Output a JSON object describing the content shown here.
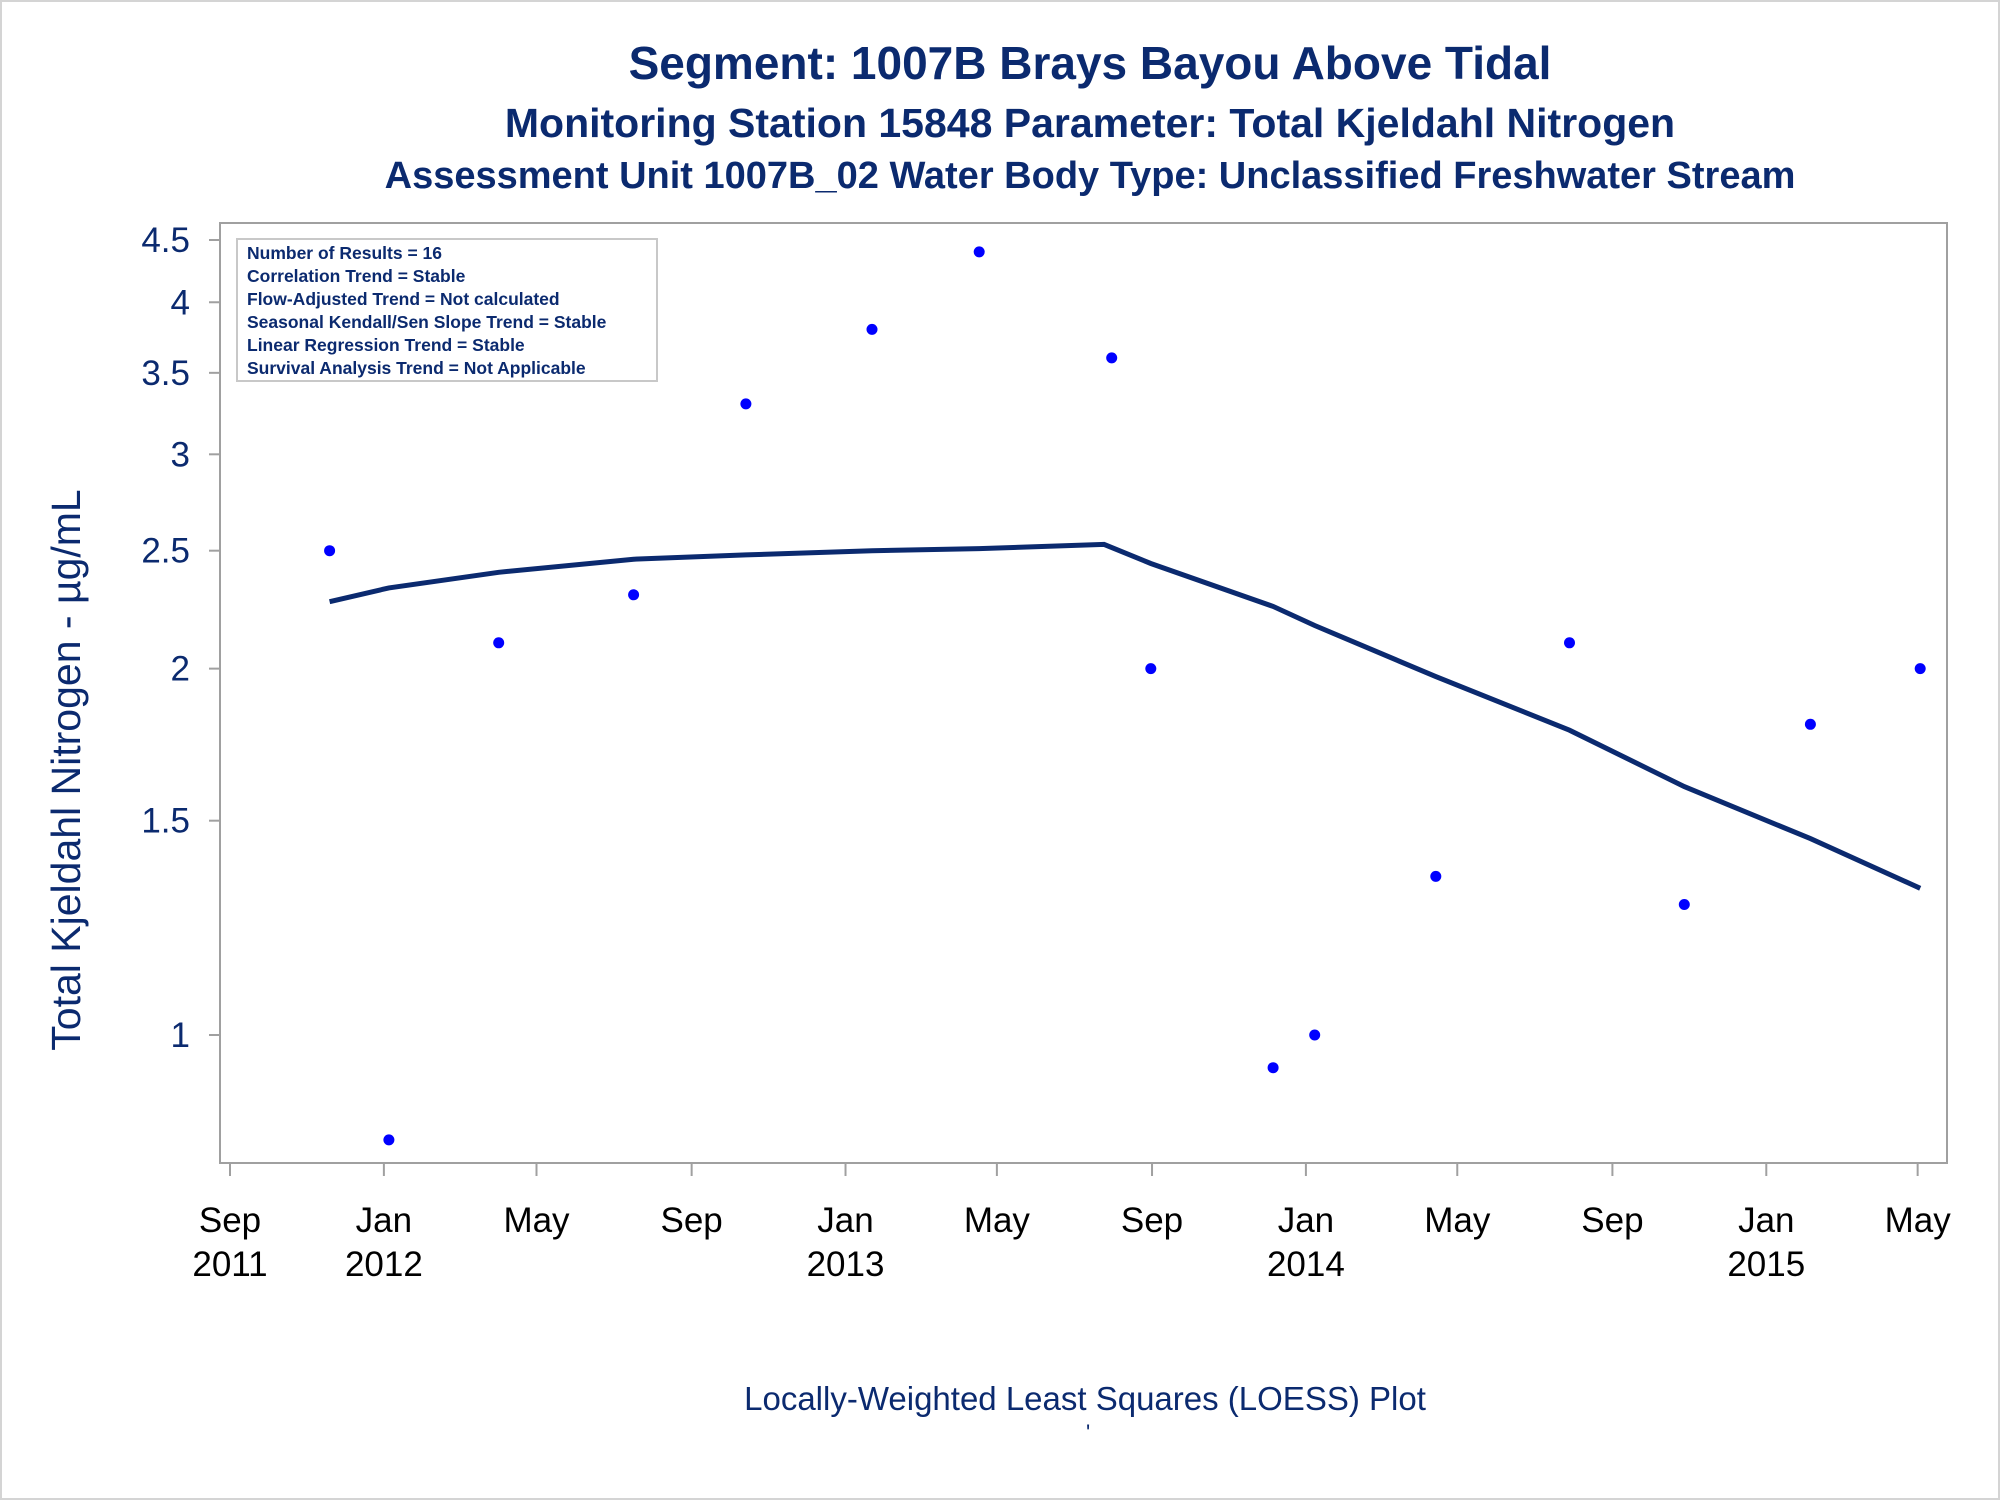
{
  "titles": {
    "line1": "Segment: 1007B  Brays Bayou Above Tidal",
    "line2": "Monitoring Station 15848 Parameter: Total Kjeldahl Nitrogen",
    "line3": "Assessment Unit 1007B_02   Water Body Type: Unclassified Freshwater Stream"
  },
  "legend": [
    "Number of Results = 16",
    "Correlation Trend = Stable",
    "Flow-Adjusted Trend = Not calculated",
    "Seasonal Kendall/Sen Slope Trend = Stable",
    "Linear Regression Trend = Stable",
    "Survival Analysis Trend = Not Applicable"
  ],
  "footnote": "Locally-Weighted Least Squares (LOESS) Plot",
  "footmark": "'",
  "colors": {
    "text": "#0b2a6f",
    "points": "#0000ff",
    "loess_line": "#0b2a6f",
    "frame": "#a0a0a0"
  },
  "chart_data": {
    "type": "scatter",
    "title": "Segment: 1007B  Brays Bayou Above Tidal",
    "ylabel": "Total Kjeldahl Nitrogen -  µg/mL",
    "xlabel": "",
    "y_scale": "log",
    "ylim": [
      0.8,
      4.6
    ],
    "xlim": [
      "2011-09-01",
      "2015-05-10"
    ],
    "y_ticks": [
      1,
      1.5,
      2,
      2.5,
      3,
      3.5,
      4,
      4.5
    ],
    "y_tick_labels": [
      "1",
      "1.5",
      "2",
      "2.5",
      "3",
      "3.5",
      "4",
      "4.5"
    ],
    "x_ticks": [
      "2011-09-01",
      "2012-01-01",
      "2012-05-01",
      "2012-09-01",
      "2013-01-01",
      "2013-05-01",
      "2013-09-01",
      "2014-01-01",
      "2014-05-01",
      "2014-09-01",
      "2015-01-01",
      "2015-05-01"
    ],
    "x_tick_labels": [
      [
        "Sep",
        "2011"
      ],
      [
        "Jan",
        "2012"
      ],
      [
        "May",
        ""
      ],
      [
        "Sep",
        ""
      ],
      [
        "Jan",
        "2013"
      ],
      [
        "May",
        ""
      ],
      [
        "Sep",
        ""
      ],
      [
        "Jan",
        "2014"
      ],
      [
        "May",
        ""
      ],
      [
        "Sep",
        ""
      ],
      [
        "Jan",
        "2015"
      ],
      [
        "May",
        ""
      ]
    ],
    "series": [
      {
        "name": "",
        "type": "scatter",
        "x": [
          "2011-11-19",
          "2012-01-05",
          "2012-04-01",
          "2012-07-17",
          "2012-10-14",
          "2013-01-22",
          "2013-04-17",
          "2013-07-31",
          "2013-08-31",
          "2013-12-06",
          "2014-01-08",
          "2014-04-14",
          "2014-07-29",
          "2014-10-28",
          "2015-02-05",
          "2015-05-03"
        ],
        "y": [
          2.5,
          0.82,
          2.1,
          2.3,
          3.3,
          3.8,
          4.4,
          3.6,
          2.0,
          0.94,
          1.0,
          1.35,
          2.1,
          1.28,
          1.8,
          2.0
        ]
      },
      {
        "name": "",
        "type": "line",
        "x": [
          "2011-11-19",
          "2012-01-05",
          "2012-04-01",
          "2012-07-17",
          "2012-10-14",
          "2013-01-22",
          "2013-04-17",
          "2013-07-25",
          "2013-08-31",
          "2013-12-06",
          "2014-01-08",
          "2014-04-14",
          "2014-07-29",
          "2014-10-28",
          "2015-02-05",
          "2015-05-03"
        ],
        "y": [
          2.27,
          2.33,
          2.4,
          2.46,
          2.48,
          2.5,
          2.51,
          2.53,
          2.44,
          2.25,
          2.17,
          1.97,
          1.78,
          1.6,
          1.45,
          1.32
        ]
      }
    ],
    "legend_position": "top-left"
  }
}
